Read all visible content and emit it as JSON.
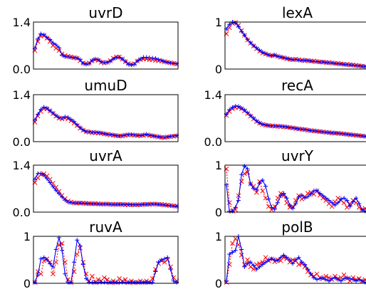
{
  "chart_data": [
    {
      "type": "line",
      "title": "uvrD",
      "ylim": [
        0,
        1.4
      ],
      "yticks": [
        "0.0",
        "1.4"
      ],
      "grid": false,
      "series": [
        {
          "marker": "+",
          "color": "#0000ff",
          "values": [
            0.62,
            0.9,
            1.05,
            1.02,
            0.94,
            0.88,
            0.78,
            0.72,
            0.64,
            0.42,
            0.37,
            0.36,
            0.35,
            0.34,
            0.33,
            0.28,
            0.17,
            0.14,
            0.16,
            0.26,
            0.3,
            0.28,
            0.22,
            0.2,
            0.2,
            0.23,
            0.3,
            0.34,
            0.35,
            0.3,
            0.23,
            0.14,
            0.12,
            0.14,
            0.24,
            0.3,
            0.35,
            0.35,
            0.34,
            0.33,
            0.32,
            0.28,
            0.26,
            0.22,
            0.2,
            0.18,
            0.17,
            0.16
          ]
        },
        {
          "marker": "x",
          "color": "#ff0000",
          "values": [
            0.55,
            0.82,
            0.98,
            1.0,
            0.92,
            0.82,
            0.7,
            0.62,
            0.55,
            0.45,
            0.4,
            0.38,
            0.36,
            0.34,
            0.32,
            0.25,
            0.18,
            0.16,
            0.18,
            0.24,
            0.28,
            0.26,
            0.2,
            0.18,
            0.2,
            0.25,
            0.32,
            0.36,
            0.36,
            0.3,
            0.22,
            0.16,
            0.14,
            0.16,
            0.24,
            0.28,
            0.3,
            0.3,
            0.28,
            0.28,
            0.26,
            0.25,
            0.24,
            0.22,
            0.2,
            0.19,
            0.17,
            0.15
          ]
        }
      ]
    },
    {
      "type": "line",
      "title": "lexA",
      "ylim": [
        0,
        1
      ],
      "yticks": [
        "0",
        "1"
      ],
      "grid": false,
      "series": [
        {
          "marker": "+",
          "color": "#0000ff",
          "values": [
            0.85,
            0.95,
            1.0,
            0.98,
            0.9,
            0.8,
            0.72,
            0.63,
            0.56,
            0.5,
            0.45,
            0.4,
            0.36,
            0.33,
            0.3,
            0.28,
            0.3,
            0.27,
            0.26,
            0.24,
            0.23,
            0.21,
            0.2,
            0.2,
            0.19,
            0.18,
            0.19,
            0.18,
            0.17,
            0.16,
            0.16,
            0.15,
            0.15,
            0.14,
            0.13,
            0.13,
            0.12,
            0.11,
            0.11,
            0.1,
            0.09,
            0.09,
            0.08,
            0.07,
            0.07,
            0.06,
            0.05,
            0.04
          ]
        },
        {
          "marker": "x",
          "color": "#ff0000",
          "values": [
            0.75,
            0.88,
            0.97,
            0.99,
            0.93,
            0.82,
            0.72,
            0.62,
            0.55,
            0.49,
            0.43,
            0.38,
            0.34,
            0.32,
            0.3,
            0.29,
            0.29,
            0.27,
            0.25,
            0.24,
            0.22,
            0.21,
            0.2,
            0.21,
            0.2,
            0.19,
            0.18,
            0.18,
            0.17,
            0.17,
            0.16,
            0.15,
            0.15,
            0.14,
            0.14,
            0.13,
            0.12,
            0.12,
            0.11,
            0.1,
            0.1,
            0.09,
            0.09,
            0.08,
            0.07,
            0.06,
            0.06,
            0.05
          ]
        }
      ]
    },
    {
      "type": "line",
      "title": "umuD",
      "ylim": [
        0,
        1.4
      ],
      "yticks": [
        "0.0",
        "1.4"
      ],
      "grid": false,
      "series": [
        {
          "marker": "+",
          "color": "#0000ff",
          "values": [
            0.65,
            0.82,
            0.96,
            1.03,
            1.0,
            0.92,
            0.85,
            0.78,
            0.72,
            0.7,
            0.74,
            0.72,
            0.66,
            0.6,
            0.5,
            0.42,
            0.35,
            0.3,
            0.3,
            0.28,
            0.28,
            0.27,
            0.26,
            0.24,
            0.22,
            0.22,
            0.2,
            0.18,
            0.17,
            0.18,
            0.2,
            0.21,
            0.21,
            0.2,
            0.19,
            0.18,
            0.2,
            0.22,
            0.2,
            0.18,
            0.16,
            0.15,
            0.13,
            0.13,
            0.14,
            0.16,
            0.17,
            0.18
          ]
        },
        {
          "marker": "x",
          "color": "#ff0000",
          "values": [
            0.58,
            0.76,
            0.9,
            0.98,
            0.98,
            0.92,
            0.84,
            0.76,
            0.7,
            0.68,
            0.7,
            0.68,
            0.62,
            0.55,
            0.48,
            0.4,
            0.34,
            0.3,
            0.28,
            0.27,
            0.26,
            0.26,
            0.25,
            0.23,
            0.22,
            0.2,
            0.19,
            0.18,
            0.17,
            0.17,
            0.19,
            0.2,
            0.2,
            0.19,
            0.18,
            0.18,
            0.19,
            0.2,
            0.18,
            0.17,
            0.16,
            0.14,
            0.13,
            0.12,
            0.14,
            0.15,
            0.16,
            0.17
          ]
        }
      ]
    },
    {
      "type": "line",
      "title": "recA",
      "ylim": [
        0,
        1.4
      ],
      "yticks": [
        "0.0",
        "1.4"
      ],
      "grid": false,
      "series": [
        {
          "marker": "+",
          "color": "#0000ff",
          "values": [
            0.82,
            0.95,
            1.02,
            1.06,
            1.05,
            1.0,
            0.94,
            0.86,
            0.78,
            0.7,
            0.62,
            0.56,
            0.52,
            0.5,
            0.48,
            0.47,
            0.47,
            0.46,
            0.46,
            0.45,
            0.44,
            0.42,
            0.41,
            0.4,
            0.38,
            0.37,
            0.36,
            0.35,
            0.33,
            0.32,
            0.31,
            0.3,
            0.29,
            0.28,
            0.27,
            0.26,
            0.26,
            0.25,
            0.24,
            0.23,
            0.22,
            0.21,
            0.2,
            0.19,
            0.18,
            0.17,
            0.16,
            0.15
          ]
        },
        {
          "marker": "x",
          "color": "#ff0000",
          "values": [
            0.78,
            0.9,
            0.98,
            1.02,
            1.02,
            0.98,
            0.92,
            0.84,
            0.76,
            0.68,
            0.6,
            0.55,
            0.51,
            0.49,
            0.48,
            0.47,
            0.46,
            0.46,
            0.45,
            0.44,
            0.43,
            0.42,
            0.41,
            0.39,
            0.38,
            0.37,
            0.36,
            0.34,
            0.33,
            0.32,
            0.31,
            0.3,
            0.29,
            0.28,
            0.27,
            0.26,
            0.25,
            0.25,
            0.24,
            0.23,
            0.22,
            0.21,
            0.2,
            0.19,
            0.18,
            0.17,
            0.16,
            0.15
          ]
        }
      ]
    },
    {
      "type": "line",
      "title": "uvrA",
      "ylim": [
        0,
        1.4
      ],
      "yticks": [
        "0.0",
        "1.4"
      ],
      "grid": false,
      "series": [
        {
          "marker": "+",
          "color": "#0000ff",
          "values": [
            0.98,
            1.15,
            1.15,
            1.1,
            1.0,
            0.88,
            0.76,
            0.65,
            0.55,
            0.45,
            0.36,
            0.3,
            0.28,
            0.27,
            0.27,
            0.27,
            0.26,
            0.26,
            0.25,
            0.25,
            0.25,
            0.24,
            0.24,
            0.24,
            0.24,
            0.23,
            0.23,
            0.23,
            0.23,
            0.23,
            0.23,
            0.23,
            0.22,
            0.22,
            0.22,
            0.22,
            0.23,
            0.23,
            0.24,
            0.24,
            0.24,
            0.23,
            0.22,
            0.21,
            0.2,
            0.19,
            0.18,
            0.17
          ]
        },
        {
          "marker": "x",
          "color": "#ff0000",
          "values": [
            0.88,
            1.02,
            1.12,
            1.14,
            1.08,
            0.98,
            0.86,
            0.74,
            0.62,
            0.5,
            0.4,
            0.33,
            0.3,
            0.28,
            0.27,
            0.27,
            0.27,
            0.26,
            0.26,
            0.25,
            0.25,
            0.25,
            0.24,
            0.24,
            0.24,
            0.24,
            0.23,
            0.23,
            0.23,
            0.23,
            0.22,
            0.22,
            0.22,
            0.22,
            0.22,
            0.22,
            0.23,
            0.23,
            0.23,
            0.24,
            0.24,
            0.23,
            0.23,
            0.22,
            0.21,
            0.2,
            0.19,
            0.18
          ]
        }
      ]
    },
    {
      "type": "line",
      "title": "uvrY",
      "ylim": [
        0,
        1
      ],
      "yticks": [
        "0",
        "1"
      ],
      "grid": false,
      "series": [
        {
          "marker": "+",
          "color": "#0000ff",
          "values": [
            0.58,
            0.02,
            0.02,
            0.1,
            0.25,
            0.8,
            0.98,
            0.92,
            0.6,
            0.5,
            0.48,
            0.62,
            0.68,
            0.55,
            0.28,
            0.1,
            0.06,
            0.2,
            0.35,
            0.4,
            0.3,
            0.15,
            0.08,
            0.18,
            0.32,
            0.36,
            0.3,
            0.33,
            0.38,
            0.45,
            0.46,
            0.4,
            0.35,
            0.3,
            0.25,
            0.2,
            0.15,
            0.2,
            0.28,
            0.3,
            0.25,
            0.12,
            0.22,
            0.3,
            0.18,
            0.05,
            0.02,
            0.02
          ]
        },
        {
          "marker": "x",
          "color": "#ff0000",
          "values": [
            0.92,
            0.2,
            0.02,
            0.05,
            0.35,
            0.65,
            0.82,
            0.85,
            0.6,
            0.55,
            0.42,
            0.65,
            0.45,
            0.3,
            0.12,
            0.05,
            0.12,
            0.3,
            0.4,
            0.35,
            0.2,
            0.1,
            0.12,
            0.25,
            0.35,
            0.28,
            0.33,
            0.4,
            0.42,
            0.38,
            0.45,
            0.36,
            0.3,
            0.25,
            0.18,
            0.12,
            0.22,
            0.3,
            0.25,
            0.2,
            0.1,
            0.18,
            0.25,
            0.2,
            0.1,
            0.05,
            0.08,
            0.02
          ]
        }
      ]
    },
    {
      "type": "line",
      "title": "ruvA",
      "ylim": [
        0,
        1
      ],
      "yticks": [
        "0",
        "1"
      ],
      "grid": false,
      "series": [
        {
          "marker": "+",
          "color": "#0000ff",
          "values": [
            0.02,
            0.18,
            0.52,
            0.55,
            0.5,
            0.42,
            0.35,
            0.72,
            0.97,
            0.7,
            0.2,
            0.02,
            0.02,
            0.45,
            0.92,
            0.8,
            0.4,
            0.1,
            0.02,
            0.02,
            0.02,
            0.02,
            0.02,
            0.02,
            0.02,
            0.02,
            0.02,
            0.02,
            0.02,
            0.02,
            0.02,
            0.02,
            0.02,
            0.02,
            0.02,
            0.02,
            0.02,
            0.02,
            0.02,
            0.02,
            0.25,
            0.45,
            0.5,
            0.52,
            0.55,
            0.3,
            0.05,
            0.02
          ]
        },
        {
          "marker": "x",
          "color": "#ff0000",
          "values": [
            0.02,
            0.25,
            0.2,
            0.48,
            0.52,
            0.45,
            0.2,
            0.45,
            0.82,
            0.85,
            0.45,
            0.08,
            0.02,
            0.25,
            0.62,
            0.75,
            0.45,
            0.2,
            0.05,
            0.15,
            0.02,
            0.08,
            0.05,
            0.12,
            0.08,
            0.02,
            0.05,
            0.02,
            0.1,
            0.05,
            0.08,
            0.02,
            0.05,
            0.02,
            0.02,
            0.05,
            0.02,
            0.05,
            0.02,
            0.1,
            0.3,
            0.42,
            0.48,
            0.45,
            0.5,
            0.35,
            0.12,
            0.05
          ]
        }
      ]
    },
    {
      "type": "line",
      "title": "polB",
      "ylim": [
        0,
        1
      ],
      "yticks": [
        "0",
        "1"
      ],
      "grid": false,
      "series": [
        {
          "marker": "+",
          "color": "#0000ff",
          "values": [
            0.05,
            0.62,
            0.66,
            0.7,
            1.0,
            0.72,
            0.35,
            0.42,
            0.45,
            0.38,
            0.3,
            0.35,
            0.4,
            0.45,
            0.5,
            0.52,
            0.5,
            0.48,
            0.55,
            0.6,
            0.55,
            0.5,
            0.42,
            0.5,
            0.55,
            0.45,
            0.4,
            0.3,
            0.2,
            0.12,
            0.08,
            0.1,
            0.12,
            0.08,
            0.05,
            0.1,
            0.12,
            0.08,
            0.05,
            0.1,
            0.12,
            0.1,
            0.08,
            0.05,
            0.08,
            0.05,
            0.02,
            0.03
          ]
        },
        {
          "marker": "x",
          "color": "#ff0000",
          "values": [
            0.02,
            0.4,
            0.85,
            0.95,
            0.82,
            0.6,
            0.4,
            0.5,
            0.35,
            0.3,
            0.4,
            0.42,
            0.45,
            0.55,
            0.48,
            0.52,
            0.46,
            0.5,
            0.48,
            0.55,
            0.52,
            0.45,
            0.5,
            0.48,
            0.4,
            0.42,
            0.35,
            0.25,
            0.18,
            0.15,
            0.2,
            0.12,
            0.1,
            0.15,
            0.12,
            0.08,
            0.15,
            0.1,
            0.12,
            0.18,
            0.1,
            0.05,
            0.12,
            0.08,
            0.1,
            0.05,
            0.08,
            0.05
          ]
        }
      ]
    }
  ]
}
